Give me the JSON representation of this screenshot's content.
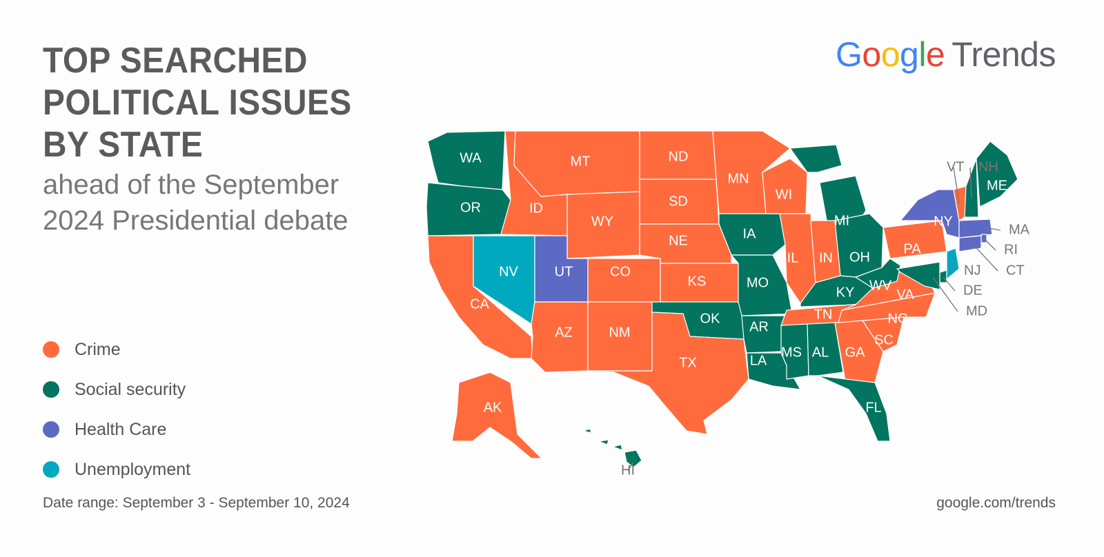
{
  "title": "TOP SEARCHED POLITICAL ISSUES BY STATE",
  "subtitle": "ahead of the September 2024 Presidential debate",
  "logo": {
    "letters": [
      {
        "ch": "G",
        "color": "#4285F4"
      },
      {
        "ch": "o",
        "color": "#EA4335"
      },
      {
        "ch": "o",
        "color": "#FBBC05"
      },
      {
        "ch": "g",
        "color": "#4285F4"
      },
      {
        "ch": "l",
        "color": "#34A853"
      },
      {
        "ch": "e",
        "color": "#EA4335"
      }
    ],
    "product": "Trends"
  },
  "legend": [
    {
      "key": "crime",
      "label": "Crime",
      "color": "#FF6B3D"
    },
    {
      "key": "social",
      "label": "Social security",
      "color": "#02745F"
    },
    {
      "key": "health",
      "label": "Health Care",
      "color": "#5C6AC4"
    },
    {
      "key": "unemp",
      "label": "Unemployment",
      "color": "#00A9BF"
    }
  ],
  "footer": {
    "date_range": "Date range: September 3 - September 10, 2024",
    "source": "google.com/trends"
  },
  "states": [
    {
      "abbr": "WA",
      "issue": "social"
    },
    {
      "abbr": "OR",
      "issue": "social"
    },
    {
      "abbr": "CA",
      "issue": "crime"
    },
    {
      "abbr": "NV",
      "issue": "unemp"
    },
    {
      "abbr": "ID",
      "issue": "crime"
    },
    {
      "abbr": "MT",
      "issue": "crime"
    },
    {
      "abbr": "WY",
      "issue": "crime"
    },
    {
      "abbr": "UT",
      "issue": "health"
    },
    {
      "abbr": "AZ",
      "issue": "crime"
    },
    {
      "abbr": "CO",
      "issue": "crime"
    },
    {
      "abbr": "NM",
      "issue": "crime"
    },
    {
      "abbr": "ND",
      "issue": "crime"
    },
    {
      "abbr": "SD",
      "issue": "crime"
    },
    {
      "abbr": "NE",
      "issue": "crime"
    },
    {
      "abbr": "KS",
      "issue": "crime"
    },
    {
      "abbr": "OK",
      "issue": "social"
    },
    {
      "abbr": "TX",
      "issue": "crime"
    },
    {
      "abbr": "MN",
      "issue": "crime"
    },
    {
      "abbr": "IA",
      "issue": "social"
    },
    {
      "abbr": "MO",
      "issue": "social"
    },
    {
      "abbr": "AR",
      "issue": "social"
    },
    {
      "abbr": "LA",
      "issue": "social"
    },
    {
      "abbr": "WI",
      "issue": "crime"
    },
    {
      "abbr": "IL",
      "issue": "crime"
    },
    {
      "abbr": "MI",
      "issue": "social"
    },
    {
      "abbr": "IN",
      "issue": "crime"
    },
    {
      "abbr": "OH",
      "issue": "social"
    },
    {
      "abbr": "KY",
      "issue": "social"
    },
    {
      "abbr": "TN",
      "issue": "crime"
    },
    {
      "abbr": "MS",
      "issue": "social"
    },
    {
      "abbr": "AL",
      "issue": "social"
    },
    {
      "abbr": "GA",
      "issue": "crime"
    },
    {
      "abbr": "FL",
      "issue": "social"
    },
    {
      "abbr": "SC",
      "issue": "crime"
    },
    {
      "abbr": "NC",
      "issue": "crime"
    },
    {
      "abbr": "VA",
      "issue": "crime"
    },
    {
      "abbr": "WV",
      "issue": "social"
    },
    {
      "abbr": "PA",
      "issue": "crime"
    },
    {
      "abbr": "NY",
      "issue": "health"
    },
    {
      "abbr": "VT",
      "issue": "crime"
    },
    {
      "abbr": "NH",
      "issue": "social"
    },
    {
      "abbr": "ME",
      "issue": "social"
    },
    {
      "abbr": "MA",
      "issue": "health"
    },
    {
      "abbr": "RI",
      "issue": "health"
    },
    {
      "abbr": "CT",
      "issue": "health"
    },
    {
      "abbr": "NJ",
      "issue": "unemp"
    },
    {
      "abbr": "DE",
      "issue": "social"
    },
    {
      "abbr": "MD",
      "issue": "social"
    },
    {
      "abbr": "AK",
      "issue": "crime"
    },
    {
      "abbr": "HI",
      "issue": "social"
    }
  ]
}
